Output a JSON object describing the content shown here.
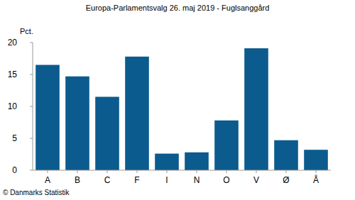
{
  "chart_data": {
    "type": "bar",
    "title": "Europa-Parlamentsvalg 26. maj 2019 - Fuglsanggård",
    "y_label": "Pct.",
    "source": "© Danmarks Statistik",
    "categories": [
      "A",
      "B",
      "C",
      "F",
      "I",
      "N",
      "O",
      "V",
      "Ø",
      "Å"
    ],
    "values": [
      16.5,
      14.7,
      11.5,
      17.8,
      2.6,
      2.8,
      7.8,
      19.1,
      4.7,
      3.2
    ],
    "color": "#0b5b8e",
    "ylim": [
      0,
      20
    ],
    "yticks": [
      0,
      5,
      10,
      15,
      20
    ],
    "grid": false
  }
}
